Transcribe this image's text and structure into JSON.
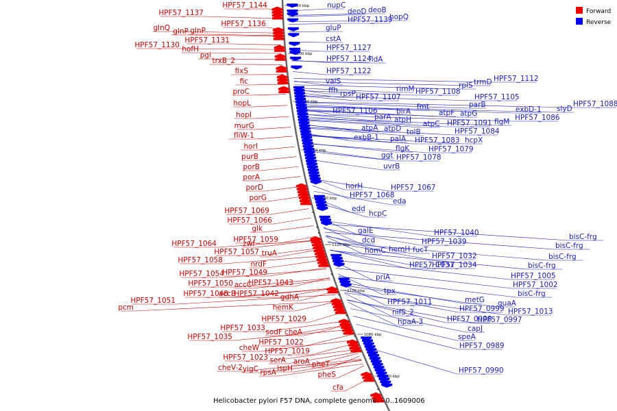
{
  "caption": "Helicobacter pylori F57 DNA, complete genome. - 0..1609006",
  "legend": [
    {
      "label": "Forward",
      "color": "#ee0000"
    },
    {
      "label": "Reverse",
      "color": "#0000ee"
    }
  ],
  "colors": {
    "forward": "#ee0000",
    "reverse": "#0000ee",
    "forward_label": "#cc0000",
    "reverse_label": "#1a1acc",
    "backbone": "#666666"
  },
  "ticks": [
    {
      "label": "1220 kbp",
      "pos": 1220
    },
    {
      "label": "1200 kbp",
      "pos": 1200
    },
    {
      "label": "1180 kbp",
      "pos": 1180
    },
    {
      "label": "1160 kbp",
      "pos": 1160
    },
    {
      "label": "1140 kbp",
      "pos": 1140
    },
    {
      "label": "1120 kbp",
      "pos": 1120
    },
    {
      "label": "1100 kbp",
      "pos": 1100
    },
    {
      "label": "1080 kbp",
      "pos": 1080
    },
    {
      "label": "1060 kbp",
      "pos": 1060
    }
  ],
  "forward_genes": [
    "HPF57_1144",
    "HPF57_1137",
    "HPF57_1136",
    "glnQ",
    "glnP",
    "glnP",
    "HPF57_1131",
    "HPF57_1130",
    "hofH",
    "pgi",
    "trxB_2",
    "fixS",
    "fic",
    "proC",
    "hopL",
    "hopI",
    "murG",
    "fliW-1",
    "horI",
    "purB",
    "porB",
    "porA",
    "porD",
    "porG",
    "HPF57_1069",
    "HPF57_1066",
    "glk",
    "HPF57_1064",
    "zwf",
    "HPF57_1059",
    "HPF57_1057",
    "truA",
    "HPF57_1058",
    "nrdF",
    "HPF57_1054",
    "HPF57_1049",
    "accC",
    "HPF57_1043",
    "HPF57_1050",
    "HPF57_1048",
    "accB",
    "HPF57_1042",
    "pcm",
    "HPF57_1051",
    "gdhA",
    "hemK",
    "HPF57_1029",
    "HPF57_1033",
    "sodF",
    "cheA",
    "HPF57_1035",
    "HPF57_1022",
    "cheW",
    "HPF57_1019",
    "HPF57_1023",
    "serA",
    "aroA",
    "cheV-2",
    "yigC",
    "ispH",
    "rpsA",
    "pheT",
    "pheS",
    "cfa"
  ],
  "reverse_genes": [
    "nupC",
    "deoD",
    "deoB",
    "HPF57_1139",
    "hopQ",
    "gluP",
    "cstA",
    "HPF57_1127",
    "HPF57_1124",
    "fldA",
    "HPF57_1122",
    "valS",
    "ffh",
    "rpsP",
    "HPF57_1107",
    "rimM",
    "HPF57_1108",
    "rplS",
    "trmD",
    "HPF57_1112",
    "HPF57_1105",
    "HPF57_1106",
    "birA",
    "fmt",
    "parB",
    "parA",
    "atpH",
    "atpF",
    "atpG",
    "exbD-1",
    "slyD",
    "HPF57_1088",
    "atpC",
    "HPF57_1091",
    "flgM",
    "HPF57_1086",
    "atpA",
    "atpD",
    "tolB",
    "HPF57_1084",
    "exbB-1",
    "palA",
    "HPF57_1083",
    "hcpX",
    "flgK",
    "HPF57_1079",
    "ggt",
    "HPF57_1078",
    "uvrB",
    "horH",
    "HPF57_1067",
    "HPF57_1068",
    "eda",
    "edd",
    "hcpC",
    "galE",
    "dcd",
    "HPF57_1040",
    "HPF57_1039",
    "homC",
    "hemH",
    "fucT",
    "HPF57_1032",
    "HPF57_1031",
    "HPF57_1034",
    "priA",
    "tpx",
    "HPF57_1011",
    "bisC-frg",
    "bisC-frg",
    "bisC-frg",
    "bisC-frg",
    "HPF57_1005",
    "HPF57_1002",
    "bisC-frg",
    "metG",
    "guaA",
    "HPF57_0999",
    "HPF57_1013",
    "nifS_2",
    "hpaA-3",
    "HPF57_0998",
    "HPF57_0997",
    "capJ",
    "speA",
    "HPF57_0989",
    "HPF57_0990"
  ]
}
